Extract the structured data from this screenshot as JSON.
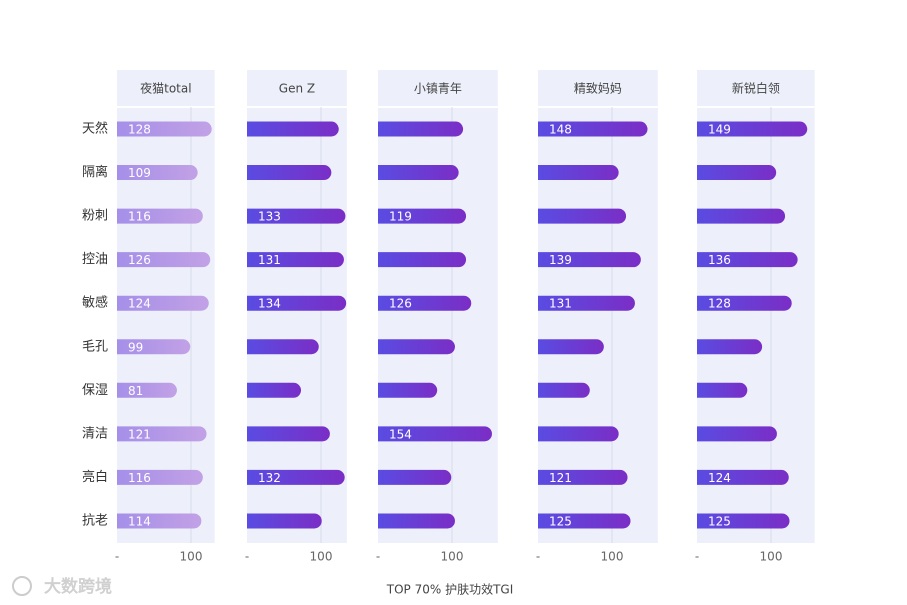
{
  "chart_data": {
    "type": "bar",
    "orientation": "horizontal",
    "x_label": "TOP 70% 护肤功效TGI",
    "watermark": "大数跨境",
    "categories": [
      "天然",
      "隔离",
      "粉刺",
      "控油",
      "敏感",
      "毛孔",
      "保湿",
      "清洁",
      "亮白",
      "抗老"
    ],
    "xticks": [
      {
        "value": 0,
        "label": "-"
      },
      100
    ],
    "background": "#edf0fb",
    "series": [
      {
        "name": "夜猫total",
        "colors": [
          "#a58fe8",
          "#c2a1e6"
        ],
        "xlim": [
          0,
          132
        ],
        "values": [
          128,
          109,
          116,
          126,
          124,
          99,
          81,
          121,
          116,
          114
        ],
        "value_labels": [
          "128",
          "109",
          "116",
          "126",
          "124",
          "99",
          "81",
          "121",
          "116",
          "114"
        ]
      },
      {
        "name": "Gen Z",
        "colors": [
          "#5a4ce2",
          "#7a2ec6"
        ],
        "xlim": [
          0,
          135
        ],
        "values": [
          124,
          114,
          133,
          131,
          134,
          97,
          73,
          112,
          132,
          101
        ],
        "value_labels": [
          null,
          null,
          "133",
          "131",
          "134",
          null,
          null,
          null,
          "132",
          null
        ]
      },
      {
        "name": "小镇青年",
        "colors": [
          "#5a4ce2",
          "#7a2ec6"
        ],
        "xlim": [
          0,
          162
        ],
        "values": [
          115,
          109,
          119,
          119,
          126,
          104,
          80,
          154,
          99,
          104
        ],
        "value_labels": [
          null,
          null,
          "119",
          null,
          "126",
          null,
          null,
          "154",
          null,
          null
        ]
      },
      {
        "name": "精致妈妈",
        "colors": [
          "#5a4ce2",
          "#7a2ec6"
        ],
        "xlim": [
          0,
          162
        ],
        "values": [
          148,
          109,
          119,
          139,
          131,
          89,
          70,
          109,
          121,
          125
        ],
        "value_labels": [
          "148",
          null,
          null,
          "139",
          "131",
          null,
          null,
          null,
          "121",
          "125"
        ]
      },
      {
        "name": "新锐白领",
        "colors": [
          "#5a4ce2",
          "#7a2ec6"
        ],
        "xlim": [
          0,
          159
        ],
        "values": [
          149,
          107,
          119,
          136,
          128,
          88,
          68,
          108,
          124,
          125
        ],
        "value_labels": [
          "149",
          null,
          null,
          "136",
          "128",
          null,
          null,
          null,
          "124",
          "125"
        ]
      }
    ]
  }
}
